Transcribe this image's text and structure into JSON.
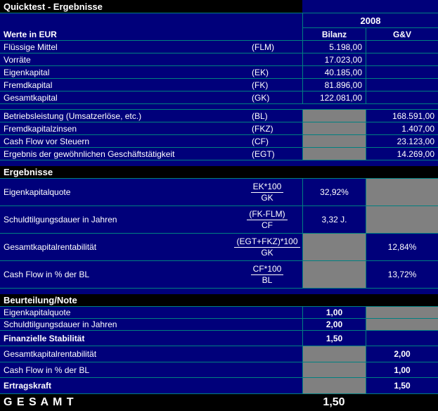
{
  "colors": {
    "navy": "#00007a",
    "teal": "#008080",
    "gray": "#808080",
    "black": "#000000",
    "white": "#ffffff"
  },
  "title": "Quicktest - Ergebnisse",
  "header": {
    "year": "2008",
    "row_label": "Werte in EUR",
    "col_bilanz": "Bilanz",
    "col_gv": "G&V"
  },
  "values_rows": [
    {
      "label": "Flüssige Mittel",
      "code": "(FLM)",
      "bilanz": "5.198,00",
      "gv": ""
    },
    {
      "label": "Vorräte",
      "code": "",
      "bilanz": "17.023,00",
      "gv": ""
    },
    {
      "label": "Eigenkapital",
      "code": "(EK)",
      "bilanz": "40.185,00",
      "gv": ""
    },
    {
      "label": "Fremdkapital",
      "code": "(FK)",
      "bilanz": "81.896,00",
      "gv": ""
    },
    {
      "label": "Gesamtkapital",
      "code": "(GK)",
      "bilanz": "122.081,00",
      "gv": ""
    },
    {
      "label": "Betriebsleistung (Umsatzerlöse, etc.)",
      "code": "(BL)",
      "bilanz": "",
      "gv": "168.591,00"
    },
    {
      "label": "Fremdkapitalzinsen",
      "code": "(FKZ)",
      "bilanz": "",
      "gv": "1.407,00"
    },
    {
      "label": "Cash Flow vor Steuern",
      "code": "(CF)",
      "bilanz": "",
      "gv": "23.123,00"
    },
    {
      "label": "Ergebnis der gewöhnlichen Geschäftstätigkeit",
      "code": "(EGT)",
      "bilanz": "",
      "gv": "14.269,00"
    }
  ],
  "ergebnisse": {
    "section_title": "Ergebnisse",
    "rows": [
      {
        "label": "Eigenkapitalquote",
        "formula_top": "EK*100",
        "formula_bottom": "GK",
        "bilanz": "32,92%",
        "gv": ""
      },
      {
        "label": "Schuldtilgungsdauer in Jahren",
        "formula_top": "(FK-FLM)",
        "formula_bottom": "CF",
        "bilanz": "3,32 J.",
        "gv": ""
      },
      {
        "label": "Gesamtkapitalrentabilität",
        "formula_top": "(EGT+FKZ)*100",
        "formula_bottom": "GK",
        "bilanz": "",
        "gv": "12,84%"
      },
      {
        "label": "Cash Flow in % der BL",
        "formula_top": "CF*100",
        "formula_bottom": "BL",
        "bilanz": "",
        "gv": "13,72%"
      }
    ]
  },
  "beurteilung": {
    "section_title": "Beurteilung/Note",
    "rows": [
      {
        "label": "Eigenkapitalquote",
        "bilanz": "1,00",
        "gv": ""
      },
      {
        "label": "Schuldtilgungsdauer in Jahren",
        "bilanz": "2,00",
        "gv": ""
      },
      {
        "label": "Finanzielle Stabilität",
        "bilanz": "1,50",
        "gv": ""
      },
      {
        "label": "Gesamtkapitalrentabilität",
        "bilanz": "",
        "gv": "2,00"
      },
      {
        "label": "Cash Flow in % der BL",
        "bilanz": "",
        "gv": "1,00"
      },
      {
        "label": "Ertragskraft",
        "bilanz": "",
        "gv": "1,50"
      }
    ]
  },
  "footer": {
    "label": "G E S A M T",
    "value": "1,50"
  }
}
